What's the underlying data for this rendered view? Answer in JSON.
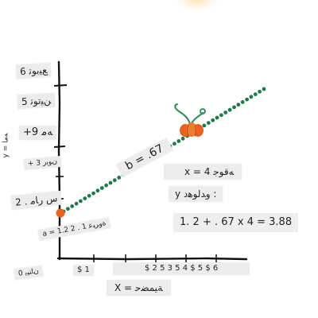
{
  "colors": {
    "line_dots": "#1e7a4a",
    "intercept_dot": "#e8621f",
    "pumpkin": "#e8621f",
    "pumpkin_stem": "#2c8a52",
    "axis": "#111111",
    "label_bg": "#ececec",
    "glow": "#fde7c2"
  },
  "icons": {
    "pumpkin": "pumpkin-icon",
    "intercept": "intercept-dot-icon",
    "glow": "sun-glow-icon"
  },
  "labels": {
    "y_tick_top": "6 ﻊﯿﺑﻮﺗ",
    "y_tick_2": "5 ﻦﯿﺗﻮﺗ",
    "y_tick_3": "+9 ﻪﻣ",
    "y_tick_4": "+ 3 ﻥﻮﺑﺭ",
    "y_tick_5": "2 . ﺱ ﺭﺎﻣ",
    "y_tick_bottom": "0 ﻥﺎﻨﯿﺑ",
    "y_axis_name": "y = ﻪﻣﺎ",
    "intercept_label": "a = 1.2 2 . 1 ﺓﻭﺮﯿﻋ",
    "slope_label": "b = .67",
    "x_value": "x = 4 ﻪﻗﻮﺟ",
    "y_question": "y ﻭﺪﻟﻮﻫﺩ :",
    "equation": "1. 2 + . 67 x 4 = 3.88",
    "x_tick_first": "$ 1",
    "x_ticks_rest": "$ 2 5 3 5 4 $ 5 $ 6",
    "x_axis_name": "X = ﺔﻴﻤﻀﺣ"
  },
  "chart_data": {
    "type": "scatter",
    "title": "",
    "xlabel": "X = ﺔﻴﻤﻀﺣ",
    "ylabel": "y = ﻪﻣﺎ",
    "line": {
      "intercept": 1.2,
      "slope": 0.67
    },
    "x_range": [
      0,
      7
    ],
    "y_range": [
      0,
      6
    ],
    "dot_count": 48,
    "highlight_point": {
      "x": 4,
      "y": 3.88
    }
  }
}
